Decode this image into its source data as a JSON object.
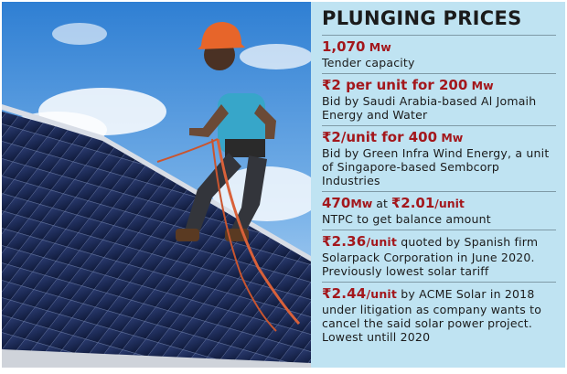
{
  "panel": {
    "title": "PLUNGING PRICES",
    "items": [
      {
        "highlight": "1,070",
        "unit": " Mw",
        "text": "Tender capacity"
      },
      {
        "highlight": "₹2 per unit for 200",
        "unit": " Mw",
        "text": "Bid by Saudi Arabia-based Al Jomaih Energy and Water"
      },
      {
        "highlight": "₹2/unit for 400",
        "unit": " Mw",
        "text": "Bid by Green Infra Wind Energy, a unit of Singapore-based Sembcorp Industries"
      },
      {
        "highlight_a": "470",
        "unit_a": "Mw",
        "mid": " at ",
        "highlight_b": "₹2.01",
        "unit_b": "/unit",
        "text": "NTPC to get balance amount"
      },
      {
        "highlight": "₹2.36",
        "unit": "/unit",
        "text": " quoted by Spanish firm Solarpack Corporation in June 2020. Previously lowest solar tariff"
      },
      {
        "highlight": "₹2.44",
        "unit": "/unit",
        "text": " by ACME Solar in 2018 under litigation as company wants to cancel the said solar power project. Lowest untill 2020"
      }
    ]
  },
  "colors": {
    "panel_bg": "#bfe3f2",
    "highlight": "#a3171c",
    "divider": "#7f9aa6"
  }
}
